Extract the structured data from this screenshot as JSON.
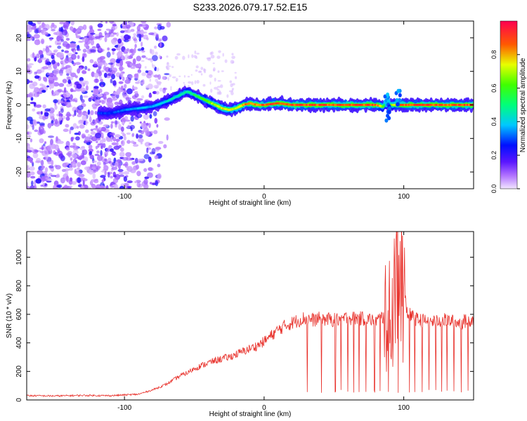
{
  "title": "S233.2026.079.17.52.E15",
  "colors": {
    "snr_line": "#e8302a",
    "ridge": "#e8302a",
    "noise": "#8a3cf0",
    "frame": "#000000",
    "background": "#ffffff"
  },
  "chart_data": [
    {
      "type": "heatmap",
      "name": "spectrogram",
      "xlabel": "Height of straight line (km)",
      "ylabel": "Frequency (Hz)",
      "xlim": [
        -170,
        150
      ],
      "ylim": [
        -25,
        25
      ],
      "xticks": [
        -100,
        0,
        100
      ],
      "xtick_labels": [
        "-100",
        "0",
        "100"
      ],
      "yticks": [
        -20,
        -10,
        0,
        10,
        20
      ],
      "ytick_labels": [
        "-20",
        "-10",
        "0",
        "10",
        "20"
      ],
      "grid": false,
      "colorbar": {
        "label": "Normalized spectral amplitude",
        "range": [
          0,
          1
        ],
        "ticks": [
          0.0,
          0.2,
          0.4,
          0.6,
          0.8
        ],
        "tick_labels": [
          "0.0",
          "0.2",
          "0.4",
          "0.6",
          "0.8"
        ],
        "colormap": "rainbow"
      },
      "ridge": {
        "description_x": [
          -118,
          -110,
          -100,
          -90,
          -80,
          -70,
          -60,
          -55,
          -50,
          -45,
          -40,
          -35,
          -30,
          -25,
          -20,
          -15,
          -10,
          -5,
          0,
          10,
          20,
          40,
          60,
          80,
          85,
          88,
          90,
          95,
          100,
          120,
          150
        ],
        "frequency": [
          -2.5,
          -2.5,
          -1.5,
          -1,
          -0.5,
          1,
          3,
          4,
          3,
          2,
          1,
          0,
          -1,
          -1.5,
          -1,
          0,
          0.5,
          0,
          0,
          0.5,
          0,
          0,
          0,
          0,
          -0.5,
          0.5,
          0,
          0,
          0,
          0,
          0
        ],
        "amplitude": [
          0.3,
          0.3,
          0.35,
          0.4,
          0.4,
          0.45,
          0.5,
          0.5,
          0.55,
          0.6,
          0.7,
          0.75,
          0.8,
          0.8,
          0.8,
          0.85,
          0.9,
          0.9,
          0.95,
          0.95,
          0.95,
          0.95,
          0.95,
          0.95,
          0.7,
          0.5,
          0.6,
          0.9,
          0.95,
          0.95,
          0.95
        ]
      },
      "noise_region_x": [
        -170,
        -75
      ]
    },
    {
      "type": "line",
      "name": "snr",
      "xlabel": "Height of straight line (km)",
      "ylabel": "SNR (10 * v/v)",
      "xlim": [
        -170,
        150
      ],
      "ylim": [
        0,
        1180
      ],
      "xticks": [
        -100,
        0,
        100
      ],
      "xtick_labels": [
        "-100",
        "0",
        "100"
      ],
      "yticks": [
        0,
        200,
        400,
        600,
        800,
        1000
      ],
      "ytick_labels": [
        "0",
        "200",
        "400",
        "600",
        "800",
        "1000"
      ],
      "grid": false,
      "series": [
        {
          "color": "#e8302a",
          "x": [
            -170,
            -150,
            -130,
            -110,
            -100,
            -90,
            -85,
            -80,
            -75,
            -70,
            -65,
            -60,
            -55,
            -50,
            -45,
            -40,
            -35,
            -30,
            -25,
            -20,
            -15,
            -10,
            -5,
            0,
            5,
            10,
            15,
            20,
            25,
            28,
            30,
            35,
            40,
            50,
            60,
            70,
            80,
            85,
            88,
            90,
            92,
            95,
            97,
            100,
            103,
            110,
            120,
            130,
            140,
            150
          ],
          "y": [
            30,
            28,
            32,
            30,
            35,
            40,
            55,
            70,
            90,
            110,
            140,
            170,
            190,
            220,
            240,
            260,
            275,
            290,
            300,
            320,
            340,
            360,
            380,
            410,
            450,
            490,
            520,
            540,
            560,
            570,
            570,
            560,
            570,
            560,
            575,
            570,
            560,
            580,
            600,
            620,
            680,
            850,
            1100,
            750,
            600,
            560,
            550,
            560,
            540,
            570
          ]
        }
      ],
      "dropouts_x": [
        31,
        41,
        51,
        55,
        60,
        64,
        68,
        73,
        79,
        83,
        89,
        96,
        104,
        108,
        113,
        118,
        123,
        127,
        131,
        136,
        141,
        146
      ]
    }
  ]
}
